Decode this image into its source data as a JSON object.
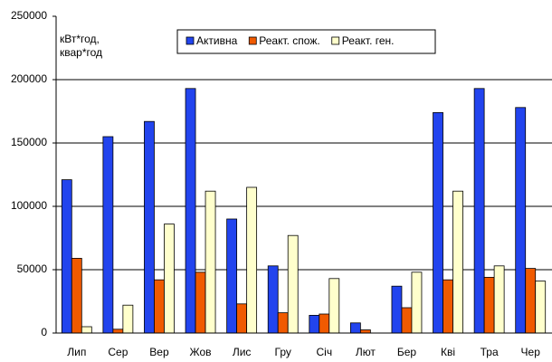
{
  "chart_data": {
    "type": "bar",
    "y_label": [
      "кВт*год,",
      "квар*год"
    ],
    "categories": [
      "Лип",
      "Сер",
      "Вер",
      "Жов",
      "Лис",
      "Гру",
      "Січ",
      "Лют",
      "Бер",
      "Кві",
      "Тра",
      "Чер"
    ],
    "series": [
      {
        "name": "Активна",
        "color": "#2244ee",
        "values": [
          121000,
          155000,
          167000,
          193000,
          90000,
          53000,
          14000,
          8000,
          37000,
          174000,
          193000,
          178000
        ]
      },
      {
        "name": "Реакт. спож.",
        "color": "#f05a00",
        "values": [
          59000,
          3000,
          42000,
          48000,
          23000,
          16000,
          15000,
          2500,
          20000,
          42000,
          44000,
          51000
        ]
      },
      {
        "name": "Реакт. ген.",
        "color": "#ffffcc",
        "values": [
          5000,
          22000,
          86000,
          112000,
          115000,
          77000,
          43000,
          0,
          48000,
          112000,
          53000,
          41000
        ]
      }
    ],
    "ylim": [
      0,
      250000
    ],
    "yticks": [
      0,
      50000,
      100000,
      150000,
      200000,
      250000
    ],
    "grid": true
  }
}
